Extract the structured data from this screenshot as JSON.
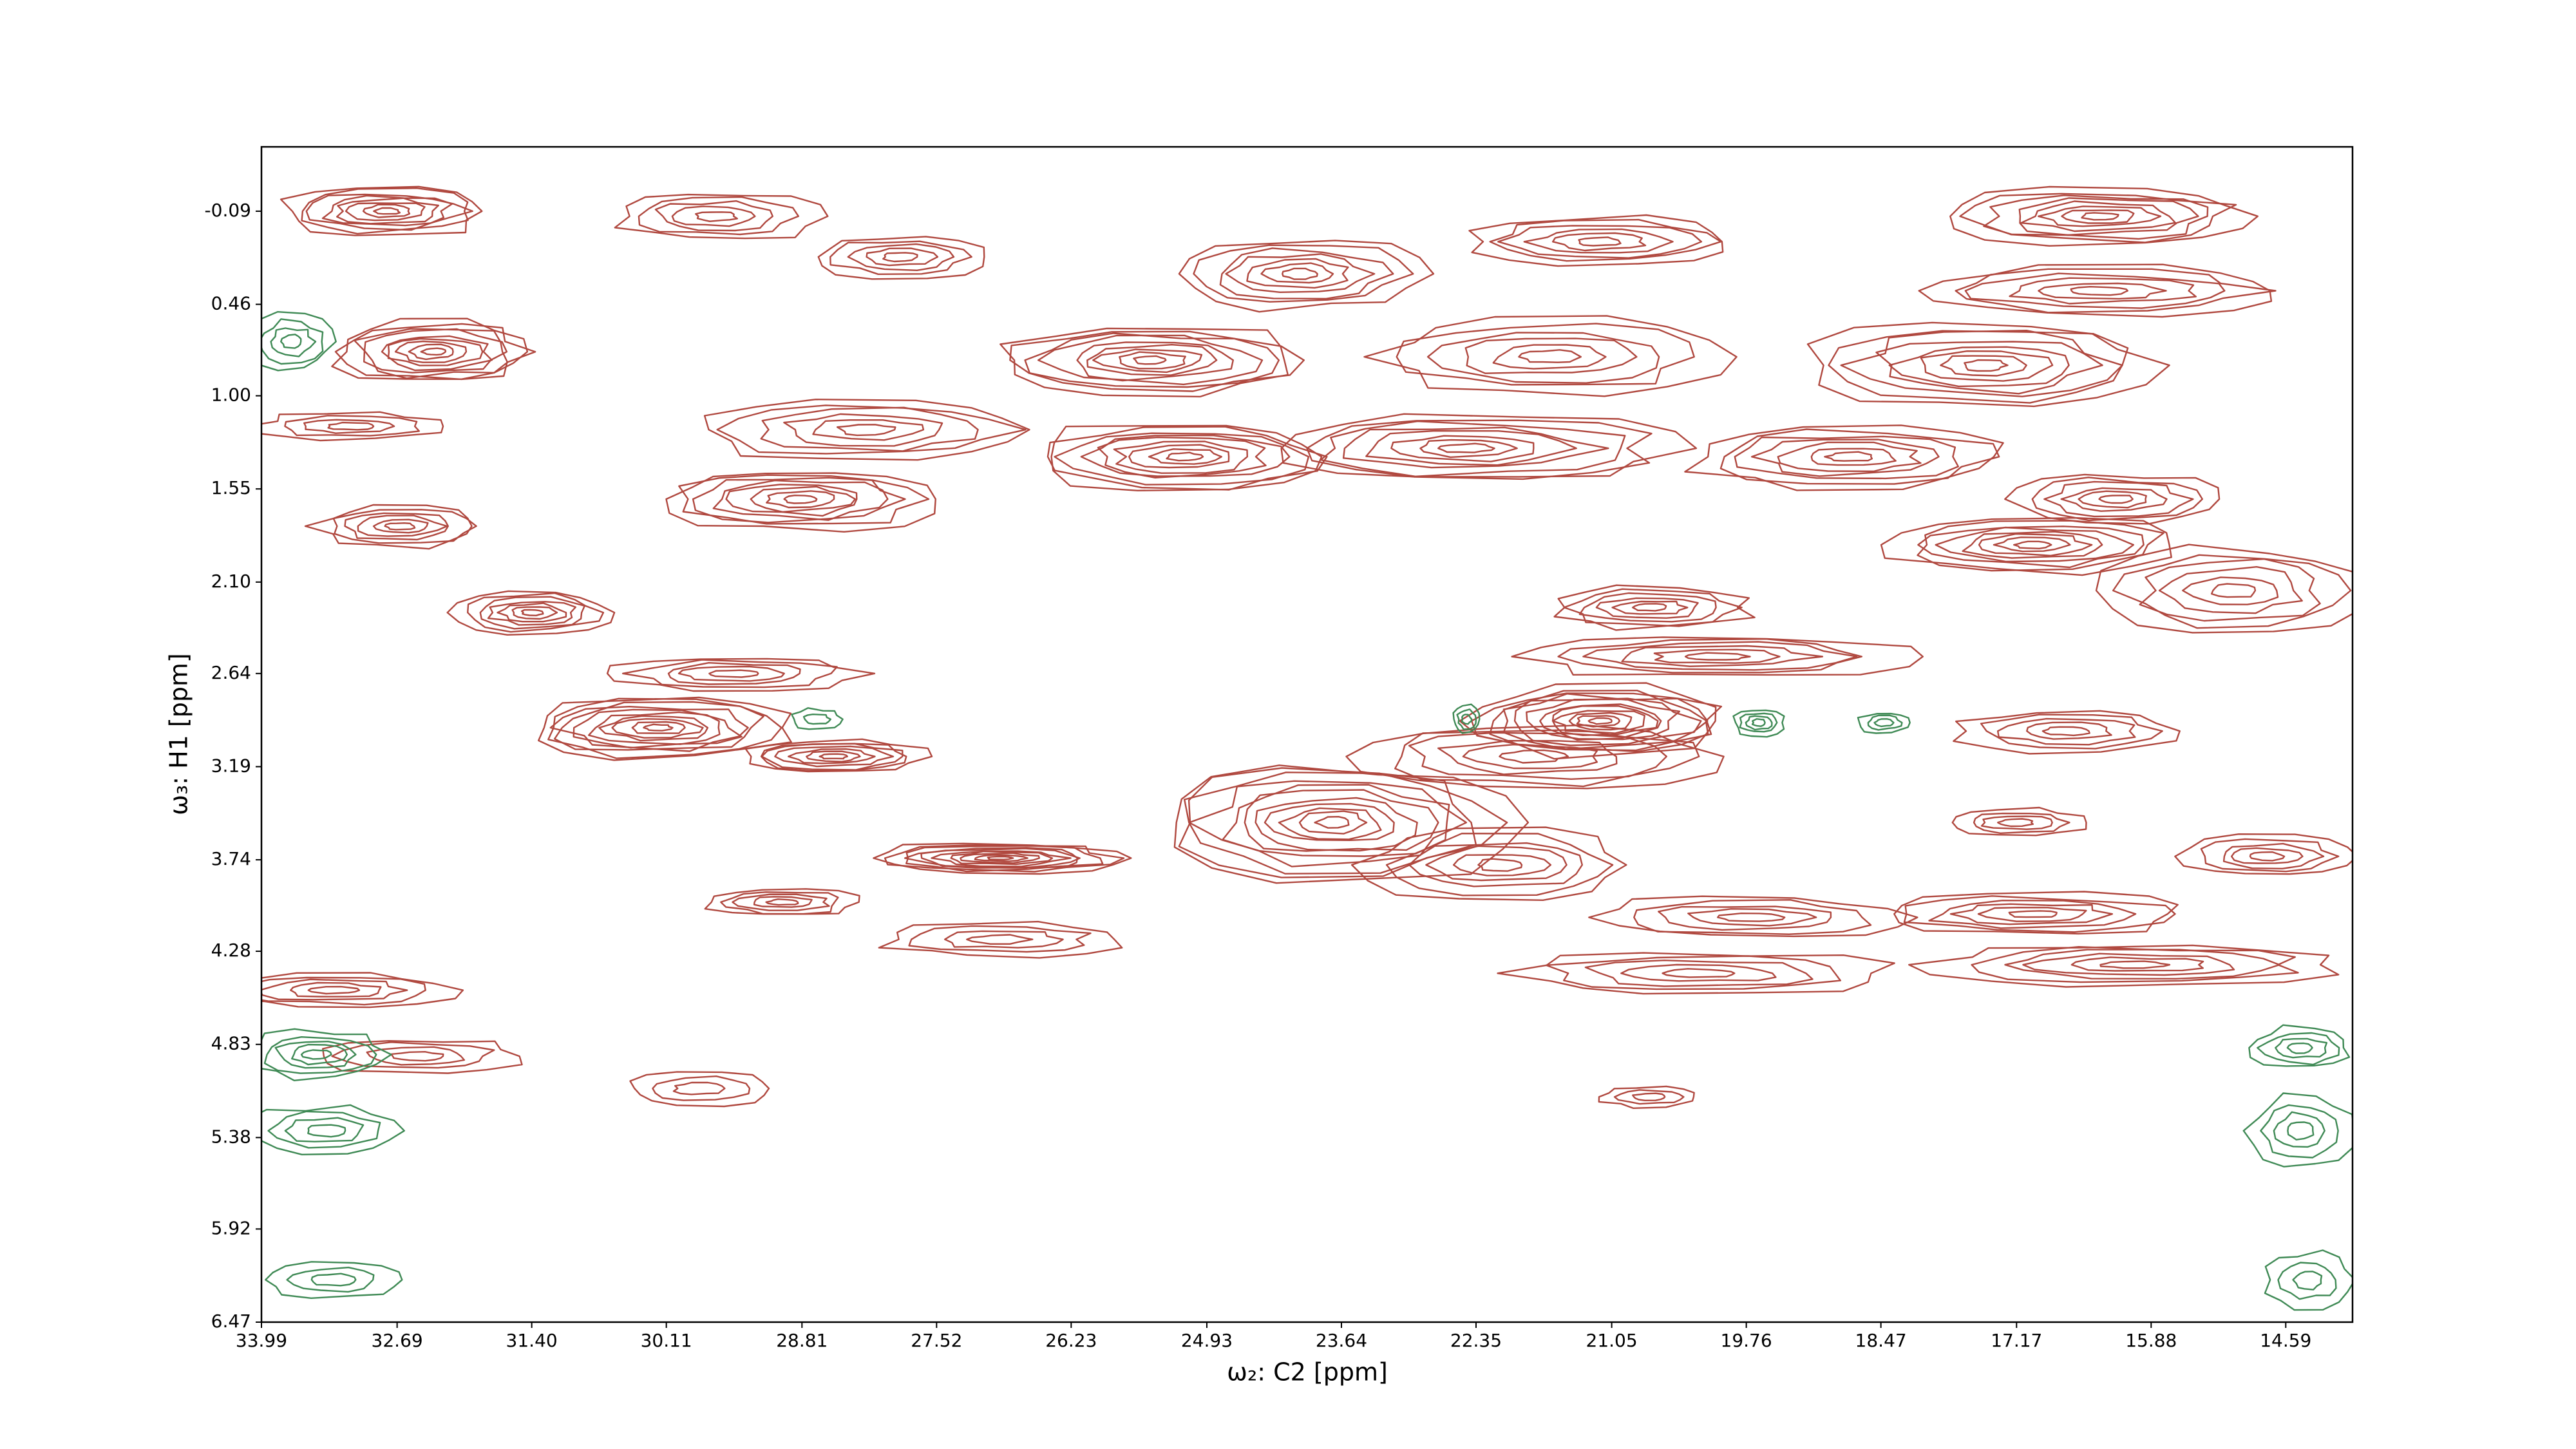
{
  "chart_data": {
    "type": "contour",
    "xlabel": "ω₂: C2 [ppm]",
    "ylabel": "ω₃: H1 [ppm]",
    "xlim": [
      33.99,
      13.95
    ],
    "ylim": [
      6.47,
      -0.47
    ],
    "xticks": [
      33.99,
      32.69,
      {
        "value": 31.4,
        "label": "31.40"
      },
      30.11,
      28.81,
      27.52,
      26.23,
      24.93,
      23.64,
      22.35,
      21.05,
      19.76,
      18.47,
      17.17,
      15.88,
      14.59
    ],
    "yticks": [
      -0.09,
      0.46,
      {
        "value": 1,
        "label": "1.00"
      },
      1.55,
      {
        "value": 2.1,
        "label": "2.10"
      },
      2.64,
      3.19,
      3.74,
      4.28,
      4.83,
      5.38,
      5.92,
      6.47
    ],
    "positive_color": "#b0483f",
    "negative_color": "#3f8a55",
    "peaks": [
      {
        "x": 32.79,
        "y": -0.09,
        "sx": 0.96,
        "sy": 0.14,
        "levels": 8,
        "sign": 1
      },
      {
        "x": 32.34,
        "y": 0.74,
        "sx": 0.96,
        "sy": 0.18,
        "levels": 9,
        "sign": 1
      },
      {
        "x": 33.14,
        "y": 1.18,
        "sx": 0.88,
        "sy": 0.08,
        "levels": 4,
        "sign": 1
      },
      {
        "x": 32.66,
        "y": 1.77,
        "sx": 0.8,
        "sy": 0.12,
        "levels": 6,
        "sign": 1
      },
      {
        "x": 31.39,
        "y": 2.28,
        "sx": 0.72,
        "sy": 0.12,
        "levels": 7,
        "sign": 1
      },
      {
        "x": 30.19,
        "y": 2.96,
        "sx": 1.28,
        "sy": 0.18,
        "levels": 10,
        "sign": 1
      },
      {
        "x": 28.51,
        "y": 3.13,
        "sx": 0.88,
        "sy": 0.1,
        "levels": 7,
        "sign": 1
      },
      {
        "x": 29.47,
        "y": 2.64,
        "sx": 1.2,
        "sy": 0.1,
        "levels": 5,
        "sign": 1
      },
      {
        "x": 28.83,
        "y": 1.61,
        "sx": 1.28,
        "sy": 0.18,
        "levels": 8,
        "sign": 1
      },
      {
        "x": 28.19,
        "y": 1.2,
        "sx": 1.6,
        "sy": 0.18,
        "levels": 6,
        "sign": 1
      },
      {
        "x": 29.63,
        "y": -0.06,
        "sx": 0.96,
        "sy": 0.14,
        "levels": 5,
        "sign": 1
      },
      {
        "x": 27.87,
        "y": 0.18,
        "sx": 0.8,
        "sy": 0.12,
        "levels": 5,
        "sign": 1
      },
      {
        "x": 26.91,
        "y": 3.73,
        "sx": 1.2,
        "sy": 0.09,
        "levels": 10,
        "sign": 1
      },
      {
        "x": 28.99,
        "y": 3.99,
        "sx": 0.72,
        "sy": 0.08,
        "levels": 5,
        "sign": 1
      },
      {
        "x": 26.91,
        "y": 4.21,
        "sx": 1.12,
        "sy": 0.1,
        "levels": 4,
        "sign": 1
      },
      {
        "x": 23.72,
        "y": 3.52,
        "sx": 1.68,
        "sy": 0.34,
        "levels": 11,
        "sign": 1
      },
      {
        "x": 22.12,
        "y": 3.77,
        "sx": 1.28,
        "sy": 0.2,
        "levels": 6,
        "sign": 1
      },
      {
        "x": 25.47,
        "y": 0.79,
        "sx": 1.44,
        "sy": 0.2,
        "levels": 9,
        "sign": 1
      },
      {
        "x": 25.15,
        "y": 1.36,
        "sx": 1.44,
        "sy": 0.2,
        "levels": 9,
        "sign": 1
      },
      {
        "x": 24.04,
        "y": 0.28,
        "sx": 1.12,
        "sy": 0.2,
        "levels": 7,
        "sign": 1
      },
      {
        "x": 22.44,
        "y": 1.31,
        "sx": 1.92,
        "sy": 0.2,
        "levels": 8,
        "sign": 1
      },
      {
        "x": 21.64,
        "y": 0.77,
        "sx": 1.6,
        "sy": 0.22,
        "levels": 6,
        "sign": 1
      },
      {
        "x": 21.16,
        "y": 0.09,
        "sx": 1.28,
        "sy": 0.14,
        "levels": 6,
        "sign": 1
      },
      {
        "x": 21.16,
        "y": 2.92,
        "sx": 1.28,
        "sy": 0.2,
        "levels": 12,
        "sign": 1
      },
      {
        "x": 21.8,
        "y": 3.13,
        "sx": 1.76,
        "sy": 0.2,
        "levels": 6,
        "sign": 1
      },
      {
        "x": 20.68,
        "y": 2.25,
        "sx": 0.96,
        "sy": 0.12,
        "levels": 6,
        "sign": 1
      },
      {
        "x": 20.04,
        "y": 2.54,
        "sx": 1.76,
        "sy": 0.12,
        "levels": 6,
        "sign": 1
      },
      {
        "x": 18.76,
        "y": 1.36,
        "sx": 1.52,
        "sy": 0.18,
        "levels": 7,
        "sign": 1
      },
      {
        "x": 17.48,
        "y": 0.82,
        "sx": 1.6,
        "sy": 0.25,
        "levels": 8,
        "sign": 1
      },
      {
        "x": 16.37,
        "y": 0.38,
        "sx": 1.76,
        "sy": 0.14,
        "levels": 6,
        "sign": 1
      },
      {
        "x": 16.37,
        "y": -0.06,
        "sx": 1.44,
        "sy": 0.16,
        "levels": 8,
        "sign": 1
      },
      {
        "x": 17.01,
        "y": 1.88,
        "sx": 1.36,
        "sy": 0.16,
        "levels": 8,
        "sign": 1
      },
      {
        "x": 16.21,
        "y": 1.61,
        "sx": 0.96,
        "sy": 0.14,
        "levels": 6,
        "sign": 1
      },
      {
        "x": 15.09,
        "y": 2.15,
        "sx": 1.28,
        "sy": 0.25,
        "levels": 6,
        "sign": 1
      },
      {
        "x": 16.69,
        "y": 2.98,
        "sx": 1.04,
        "sy": 0.12,
        "levels": 5,
        "sign": 1
      },
      {
        "x": 17.17,
        "y": 3.52,
        "sx": 0.64,
        "sy": 0.08,
        "levels": 4,
        "sign": 1
      },
      {
        "x": 14.77,
        "y": 3.72,
        "sx": 0.8,
        "sy": 0.12,
        "levels": 5,
        "sign": 1
      },
      {
        "x": 19.72,
        "y": 4.08,
        "sx": 1.44,
        "sy": 0.12,
        "levels": 5,
        "sign": 1
      },
      {
        "x": 17.01,
        "y": 4.06,
        "sx": 1.44,
        "sy": 0.12,
        "levels": 6,
        "sign": 1
      },
      {
        "x": 20.2,
        "y": 4.41,
        "sx": 1.76,
        "sy": 0.12,
        "levels": 5,
        "sign": 1
      },
      {
        "x": 16.05,
        "y": 4.36,
        "sx": 1.92,
        "sy": 0.12,
        "levels": 6,
        "sign": 1
      },
      {
        "x": 33.3,
        "y": 4.51,
        "sx": 1.12,
        "sy": 0.1,
        "levels": 5,
        "sign": 1
      },
      {
        "x": 32.5,
        "y": 4.9,
        "sx": 0.96,
        "sy": 0.1,
        "levels": 4,
        "sign": 1
      },
      {
        "x": 20.68,
        "y": 5.14,
        "sx": 0.48,
        "sy": 0.06,
        "levels": 3,
        "sign": 1
      },
      {
        "x": 29.79,
        "y": 5.09,
        "sx": 0.72,
        "sy": 0.1,
        "levels": 3,
        "sign": 1
      },
      {
        "x": 33.46,
        "y": 4.89,
        "sx": 0.64,
        "sy": 0.14,
        "levels": 5,
        "sign": -1
      },
      {
        "x": 33.38,
        "y": 5.34,
        "sx": 0.72,
        "sy": 0.14,
        "levels": 4,
        "sign": -1
      },
      {
        "x": 33.7,
        "y": 0.68,
        "sx": 0.4,
        "sy": 0.16,
        "levels": 4,
        "sign": -1
      },
      {
        "x": 19.64,
        "y": 2.93,
        "sx": 0.24,
        "sy": 0.08,
        "levels": 4,
        "sign": -1
      },
      {
        "x": 18.44,
        "y": 2.93,
        "sx": 0.24,
        "sy": 0.06,
        "levels": 3,
        "sign": -1
      },
      {
        "x": 22.44,
        "y": 2.91,
        "sx": 0.13,
        "sy": 0.08,
        "levels": 3,
        "sign": -1
      },
      {
        "x": 14.45,
        "y": 5.34,
        "sx": 0.48,
        "sy": 0.2,
        "levels": 4,
        "sign": -1
      },
      {
        "x": 14.45,
        "y": 4.85,
        "sx": 0.48,
        "sy": 0.12,
        "levels": 4,
        "sign": -1
      },
      {
        "x": 33.3,
        "y": 6.22,
        "sx": 0.64,
        "sy": 0.1,
        "levels": 3,
        "sign": -1
      },
      {
        "x": 14.37,
        "y": 6.22,
        "sx": 0.4,
        "sy": 0.16,
        "levels": 3,
        "sign": -1
      },
      {
        "x": 28.67,
        "y": 2.91,
        "sx": 0.24,
        "sy": 0.06,
        "levels": 2,
        "sign": -1
      }
    ]
  }
}
